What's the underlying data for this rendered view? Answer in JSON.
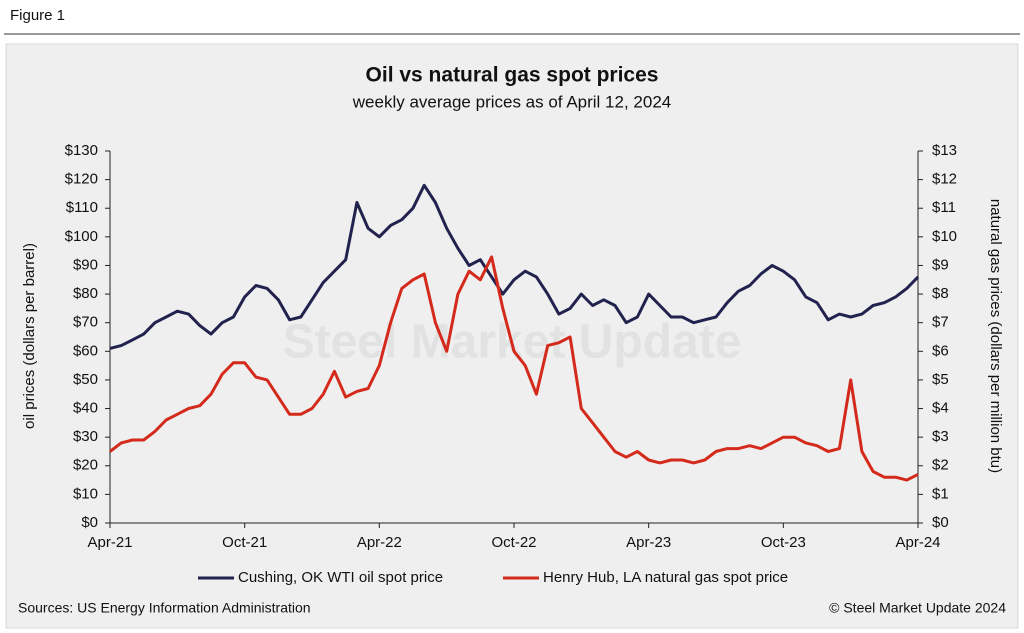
{
  "figure_label": "Figure 1",
  "source": "Sources: US Energy Information Administration",
  "copyright": "© Steel Market Update 2024",
  "chart_data": {
    "type": "line",
    "title": "Oil vs natural gas spot prices",
    "subtitle": "weekly average prices as of April 12, 2024",
    "watermark": "Steel Market Update",
    "y_label": "oil prices (dollars per barrel)",
    "y2_label": "natural gas prices (dollars per million btu)",
    "categories": [
      "Apr-21",
      null,
      null,
      null,
      null,
      null,
      null,
      null,
      null,
      null,
      null,
      null,
      "Oct-21",
      null,
      null,
      null,
      null,
      null,
      null,
      null,
      null,
      null,
      null,
      null,
      "Apr-22",
      null,
      null,
      null,
      null,
      null,
      null,
      null,
      null,
      null,
      null,
      null,
      "Oct-22",
      null,
      null,
      null,
      null,
      null,
      null,
      null,
      null,
      null,
      null,
      null,
      "Apr-23",
      null,
      null,
      null,
      null,
      null,
      null,
      null,
      null,
      null,
      null,
      null,
      "Oct-23",
      null,
      null,
      null,
      null,
      null,
      null,
      null,
      null,
      null,
      null,
      null,
      "Apr-24"
    ],
    "ylim": [
      0,
      130
    ],
    "yticks": [
      {
        "value": 0,
        "label": "$0"
      },
      {
        "value": 10,
        "label": "$10"
      },
      {
        "value": 20,
        "label": "$20"
      },
      {
        "value": 30,
        "label": "$30"
      },
      {
        "value": 40,
        "label": "$40"
      },
      {
        "value": 50,
        "label": "$50"
      },
      {
        "value": 60,
        "label": "$60"
      },
      {
        "value": 70,
        "label": "$70"
      },
      {
        "value": 80,
        "label": "$80"
      },
      {
        "value": 90,
        "label": "$90"
      },
      {
        "value": 100,
        "label": "$100"
      },
      {
        "value": 110,
        "label": "$110"
      },
      {
        "value": 120,
        "label": "$120"
      },
      {
        "value": 130,
        "label": "$130"
      }
    ],
    "y2lim": [
      0,
      13
    ],
    "y2ticks": [
      {
        "value": 0,
        "label": "$0"
      },
      {
        "value": 1,
        "label": "$1"
      },
      {
        "value": 2,
        "label": "$2"
      },
      {
        "value": 3,
        "label": "$3"
      },
      {
        "value": 4,
        "label": "$4"
      },
      {
        "value": 5,
        "label": "$5"
      },
      {
        "value": 6,
        "label": "$6"
      },
      {
        "value": 7,
        "label": "$7"
      },
      {
        "value": 8,
        "label": "$8"
      },
      {
        "value": 9,
        "label": "$9"
      },
      {
        "value": 10,
        "label": "$10"
      },
      {
        "value": 11,
        "label": "$11"
      },
      {
        "value": 12,
        "label": "$12"
      },
      {
        "value": 13,
        "label": "$13"
      }
    ],
    "series": [
      {
        "name": "Cushing, OK WTI oil spot price",
        "color": "#22224e",
        "values": [
          61,
          62,
          64,
          66,
          70,
          72,
          74,
          73,
          69,
          66,
          70,
          72,
          79,
          83,
          82,
          78,
          71,
          72,
          78,
          84,
          88,
          92,
          112,
          103,
          100,
          104,
          106,
          110,
          118,
          112,
          103,
          96,
          90,
          92,
          86,
          80,
          85,
          88,
          86,
          80,
          73,
          75,
          80,
          76,
          78,
          76,
          70,
          72,
          80,
          76,
          72,
          72,
          70,
          71,
          72,
          77,
          81,
          83,
          87,
          90,
          88,
          85,
          79,
          77,
          71,
          73,
          72,
          73,
          76,
          77,
          79,
          82,
          86
        ]
      },
      {
        "name": "Henry Hub, LA natural gas spot price",
        "color": "#d42a1c",
        "axis": "y2",
        "values": [
          2.5,
          2.8,
          2.9,
          2.9,
          3.2,
          3.6,
          3.8,
          4.0,
          4.1,
          4.5,
          5.2,
          5.6,
          5.6,
          5.1,
          5.0,
          4.4,
          3.8,
          3.8,
          4.0,
          4.5,
          5.3,
          4.4,
          4.6,
          4.7,
          5.5,
          7.0,
          8.2,
          8.5,
          8.7,
          7.0,
          6.0,
          8.0,
          8.8,
          8.5,
          9.3,
          7.5,
          6.0,
          5.5,
          4.5,
          6.2,
          6.3,
          6.5,
          4.0,
          3.5,
          3.0,
          2.5,
          2.3,
          2.5,
          2.2,
          2.1,
          2.2,
          2.2,
          2.1,
          2.2,
          2.5,
          2.6,
          2.6,
          2.7,
          2.6,
          2.8,
          3.0,
          3.0,
          2.8,
          2.7,
          2.5,
          2.6,
          5.0,
          2.5,
          1.8,
          1.6,
          1.6,
          1.5,
          1.7
        ]
      }
    ]
  }
}
